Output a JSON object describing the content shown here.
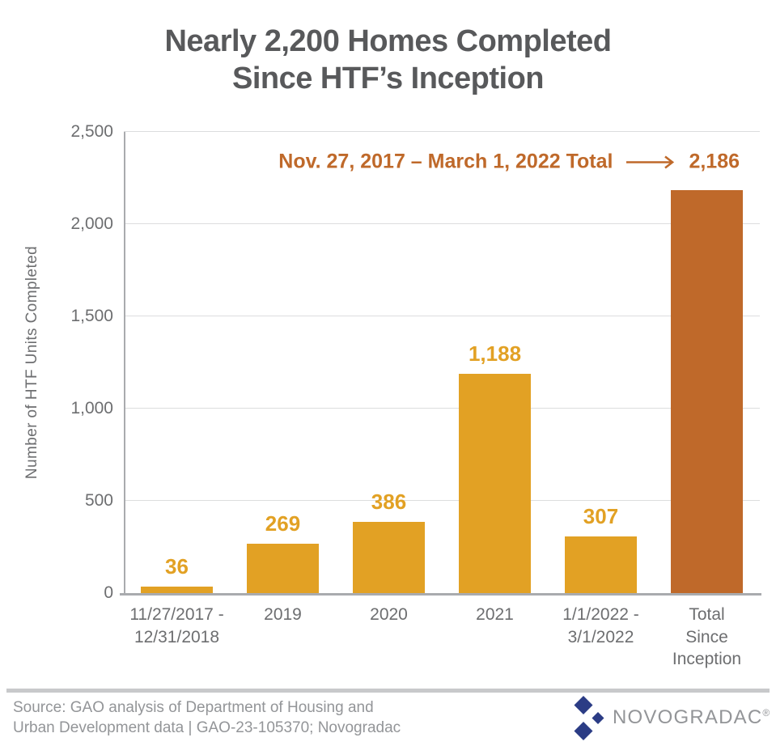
{
  "title": {
    "line1": "Nearly 2,200 Homes Completed",
    "line2": "Since HTF’s Inception"
  },
  "annotation": {
    "text": "Nov. 27, 2017 – March 1, 2022 Total",
    "arrow_icon": "right-arrow",
    "value": "2,186"
  },
  "chart_data": {
    "type": "bar",
    "title": "Nearly 2,200 Homes Completed Since HTF’s Inception",
    "xlabel": "",
    "ylabel": "Number of HTF Units Completed",
    "ylim": [
      0,
      2500
    ],
    "yticks": [
      0,
      500,
      1000,
      1500,
      2000,
      2500
    ],
    "ytick_labels": [
      "0",
      "500",
      "1,000",
      "1,500",
      "2,000",
      "2,500"
    ],
    "grid": "horizontal",
    "legend": "none",
    "categories": [
      "11/27/2017 - 12/31/2018",
      "2019",
      "2020",
      "2021",
      "1/1/2022 - 3/1/2022",
      "Total Since Inception"
    ],
    "category_lines": [
      [
        "11/27/2017 -",
        "12/31/2018"
      ],
      [
        "2019"
      ],
      [
        "2020"
      ],
      [
        "2021"
      ],
      [
        "1/1/2022 -",
        "3/1/2022"
      ],
      [
        "Total",
        "Since",
        "Inception"
      ]
    ],
    "values": [
      36,
      269,
      386,
      1188,
      307,
      2186
    ],
    "value_labels": [
      "36",
      "269",
      "386",
      "1,188",
      "307",
      "2,186"
    ],
    "value_label_above_bar": [
      true,
      true,
      true,
      true,
      true,
      false
    ],
    "bar_colors": [
      "#E2A124",
      "#E2A124",
      "#E2A124",
      "#E2A124",
      "#E2A124",
      "#BF692A"
    ],
    "annotation": "Nov. 27, 2017 – March 1, 2022 Total ⟶ 2,186"
  },
  "footer": {
    "source_line1": "Source: GAO analysis of Department of Housing and",
    "source_line2": "Urban Development data | GAO-23-105370; Novogradac",
    "logo_text": "NOVOGRADAC",
    "logo_reg": "®"
  },
  "colors": {
    "gold": "#E2A124",
    "rust": "#BF692A",
    "title_gray": "#58595B",
    "axis_text_gray": "#6D6E70",
    "axis_line_gray": "#A9ABAE",
    "gridline_gray": "#DCDDDE",
    "divider_gray": "#C8C9CB",
    "muted_gray": "#939598",
    "logo_navy": "#2B3C85",
    "background": "#FFFFFF"
  }
}
